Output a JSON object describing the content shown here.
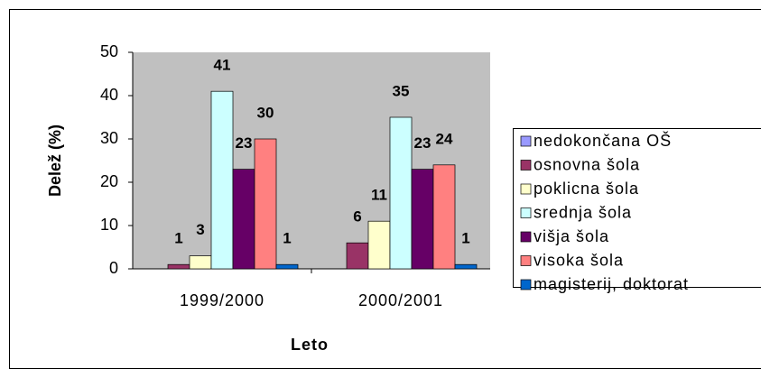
{
  "chart_data": {
    "type": "bar",
    "xlabel": "Leto",
    "ylabel": "Delež (%)",
    "categories": [
      "1999/2000",
      "2000/2001"
    ],
    "series": [
      {
        "name": "nedokončana OŠ",
        "color": "#9999ff",
        "values": [
          0,
          0
        ]
      },
      {
        "name": "osnovna šola",
        "color": "#993366",
        "values": [
          1,
          6
        ]
      },
      {
        "name": "poklicna šola",
        "color": "#ffffcc",
        "values": [
          3,
          11
        ]
      },
      {
        "name": "srednja šola",
        "color": "#ccffff",
        "values": [
          41,
          35
        ]
      },
      {
        "name": "višja šola",
        "color": "#660066",
        "values": [
          23,
          23
        ]
      },
      {
        "name": "visoka šola",
        "color": "#ff8080",
        "values": [
          30,
          24
        ]
      },
      {
        "name": "magisterij, doktorat",
        "color": "#0066cc",
        "values": [
          1,
          1
        ]
      }
    ],
    "ylim": [
      0,
      50
    ],
    "yticks": [
      0,
      10,
      20,
      30,
      40,
      50
    ],
    "grid": false,
    "legend": "right"
  }
}
